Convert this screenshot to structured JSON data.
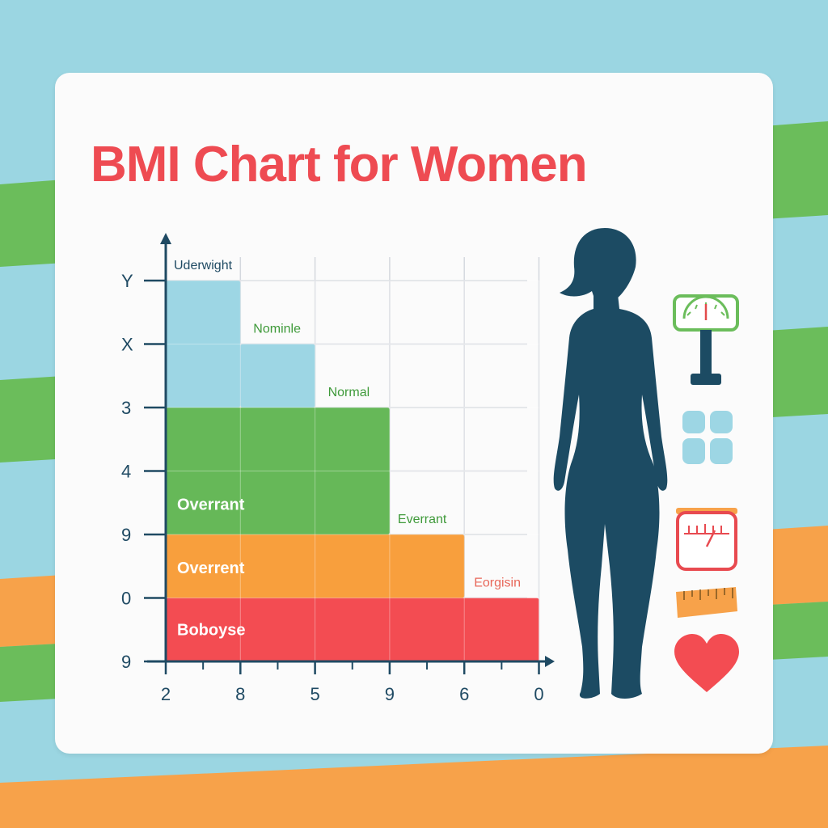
{
  "colors": {
    "background_blue": "#9bd6e2",
    "stripe_green": "#6bbd5b",
    "stripe_orange": "#f7a24a",
    "card": "#fbfbfb",
    "title": "#ee4b52",
    "axis": "#1f4a63",
    "grid": "#d4d8de",
    "silhouette": "#1c4b63",
    "category_light_blue": "#9dd6e4",
    "category_green": "#66b858",
    "category_orange": "#f89f3d",
    "category_red": "#f34c52"
  },
  "chart_data": {
    "type": "bar",
    "title": "BMI Chart for Women",
    "x_tick_labels": [
      "2",
      "8",
      "5",
      "9",
      "6",
      "0"
    ],
    "y_tick_labels": [
      "Y",
      "X",
      "3",
      "4",
      "9",
      "0",
      "9"
    ],
    "steps": [
      {
        "label": "Uderwight",
        "color": "#9dd6e4",
        "bands": 6,
        "label_color": "#1f4a63",
        "label_weight": "normal"
      },
      {
        "label": "Nominle",
        "color": "#9dd6e4",
        "bands": 5,
        "label_color": "#3f9a3a",
        "label_weight": "normal"
      },
      {
        "label": "Normal",
        "color": "#66b858",
        "bands": 4,
        "label_color": "#3f9a3a",
        "label_weight": "normal"
      },
      {
        "label": "Overrant",
        "color": "#66b858",
        "bands": 3,
        "label_color": "#ffffff",
        "label_weight": "bold"
      },
      {
        "label": "Everrant",
        "color": "#f89f3d",
        "bands": 2,
        "label_color": "#3f9a3a",
        "label_weight": "normal"
      },
      {
        "label": "Overrent",
        "color": "#f89f3d",
        "bands": 2,
        "label_color": "#ffffff",
        "label_weight": "bold"
      },
      {
        "label": "Eorgisin",
        "color": "#f34c52",
        "bands": 1,
        "label_color": "#e8685a",
        "label_weight": "normal"
      },
      {
        "label": "Boboyse",
        "color": "#f34c52",
        "bands": 1,
        "label_color": "#ffffff",
        "label_weight": "bold"
      }
    ],
    "grid": true
  },
  "side_icons": [
    "scale-icon",
    "window-icon",
    "weighing-scale-icon",
    "measuring-tape-icon",
    "heart-icon"
  ]
}
